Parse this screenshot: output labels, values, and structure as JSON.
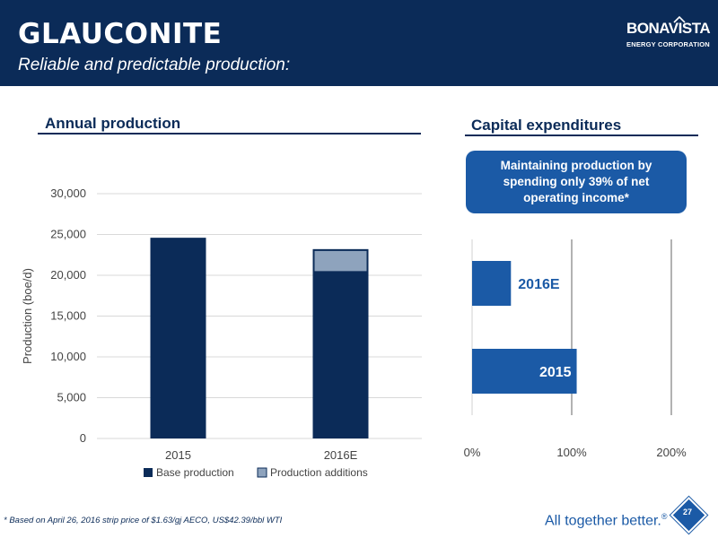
{
  "header": {
    "title": "GLAUCONITE",
    "subtitle": "Reliable and predictable production:"
  },
  "logo": {
    "name": "BONAVISTA",
    "sub": "ENERGY CORPORATION"
  },
  "sections": {
    "left_title": "Annual production",
    "right_title": "Capital expenditures"
  },
  "callout": {
    "text": "Maintaining production by spending only 39% of net operating income*"
  },
  "chart_data": [
    {
      "type": "bar",
      "stacked": true,
      "categories": [
        "2015",
        "2016E"
      ],
      "series": [
        {
          "name": "Base production",
          "values": [
            24600,
            20400
          ],
          "color": "#0b2b58"
        },
        {
          "name": "Production additions",
          "values": [
            0,
            2800
          ],
          "color": "#8ea3bd"
        }
      ],
      "ylabel": "Production (boe/d)",
      "xlabel": "",
      "ylim": [
        0,
        30000
      ],
      "yticks": [
        0,
        5000,
        10000,
        15000,
        20000,
        25000,
        30000
      ],
      "ytick_labels": [
        "0",
        "5,000",
        "10,000",
        "15,000",
        "20,000",
        "25,000",
        "30,000"
      ],
      "grid": true,
      "legend": "bottom"
    },
    {
      "type": "bar",
      "orientation": "horizontal",
      "categories": [
        "2016E",
        "2015"
      ],
      "values": [
        39,
        105
      ],
      "data_labels": [
        "2016E",
        "2015"
      ],
      "xlim": [
        0,
        200
      ],
      "xticks": [
        0,
        100,
        200
      ],
      "xtick_labels": [
        "0%",
        "100%",
        "200%"
      ],
      "grid": true,
      "color": "#1b5aa6"
    }
  ],
  "footer": {
    "footnote": "* Based on April 26, 2016 strip price of $1.63/gj AECO, US$42.39/bbl WTI",
    "tagline": "All together better.",
    "tagline_mark": "®",
    "page": "27"
  }
}
